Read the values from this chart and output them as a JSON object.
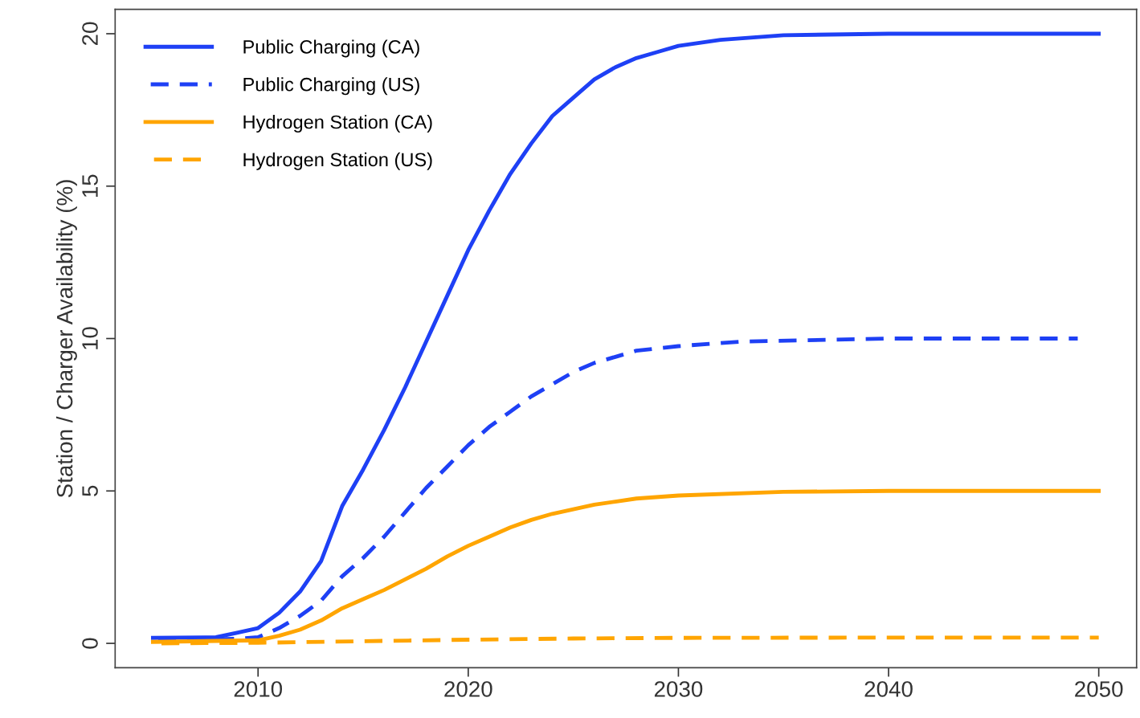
{
  "chart_data": {
    "type": "line",
    "ylabel": "Station / Charger Availability (%)",
    "xlim": [
      2003.2,
      2051.8
    ],
    "ylim": [
      -0.8,
      20.8
    ],
    "xticks": [
      2010,
      2020,
      2030,
      2040,
      2050
    ],
    "yticks": [
      0,
      5,
      10,
      15,
      20
    ],
    "grid": false,
    "legend": "top left",
    "marker": "none",
    "series": [
      {
        "name": "Public Charging (CA)",
        "color": "#1e40f5",
        "line_style": "solid",
        "x": [
          2005,
          2008,
          2009,
          2010,
          2011,
          2012,
          2013,
          2014,
          2015,
          2016,
          2017,
          2018,
          2019,
          2020,
          2021,
          2022,
          2023,
          2024,
          2025,
          2026,
          2027,
          2028,
          2029,
          2030,
          2032,
          2035,
          2040,
          2050
        ],
        "values": [
          0.18,
          0.2,
          0.35,
          0.5,
          1.0,
          1.7,
          2.7,
          4.5,
          5.7,
          7.0,
          8.4,
          9.9,
          11.4,
          12.9,
          14.2,
          15.4,
          16.4,
          17.3,
          17.9,
          18.5,
          18.9,
          19.2,
          19.4,
          19.6,
          19.8,
          19.95,
          20,
          20
        ]
      },
      {
        "name": "Public Charging (US)",
        "color": "#1e40f5",
        "line_style": "dashed",
        "x": [
          2005,
          2009,
          2010,
          2011,
          2012,
          2013,
          2014,
          2015,
          2016,
          2017,
          2018,
          2019,
          2020,
          2021,
          2022,
          2023,
          2024,
          2025,
          2026,
          2027,
          2028,
          2030,
          2033,
          2040,
          2049
        ],
        "values": [
          0.1,
          0.15,
          0.2,
          0.5,
          0.9,
          1.4,
          2.2,
          2.8,
          3.5,
          4.3,
          5.1,
          5.8,
          6.5,
          7.1,
          7.6,
          8.1,
          8.5,
          8.9,
          9.2,
          9.4,
          9.6,
          9.75,
          9.9,
          10,
          10
        ]
      },
      {
        "name": "Hydrogen Station (CA)",
        "color": "#ffa500",
        "line_style": "solid",
        "x": [
          2005,
          2010,
          2011,
          2012,
          2013,
          2014,
          2015,
          2016,
          2017,
          2018,
          2019,
          2020,
          2021,
          2022,
          2023,
          2024,
          2025,
          2026,
          2027,
          2028,
          2030,
          2035,
          2040,
          2050
        ],
        "values": [
          0.05,
          0.1,
          0.25,
          0.45,
          0.75,
          1.15,
          1.45,
          1.75,
          2.1,
          2.45,
          2.85,
          3.2,
          3.5,
          3.8,
          4.05,
          4.25,
          4.4,
          4.55,
          4.65,
          4.75,
          4.85,
          4.97,
          5,
          5
        ]
      },
      {
        "name": "Hydrogen Station (US)",
        "color": "#ffa500",
        "line_style": "dashed",
        "x": [
          2005,
          2010,
          2015,
          2020,
          2025,
          2030,
          2040,
          2050
        ],
        "values": [
          0.0,
          0.02,
          0.07,
          0.12,
          0.16,
          0.18,
          0.19,
          0.19
        ]
      }
    ]
  }
}
